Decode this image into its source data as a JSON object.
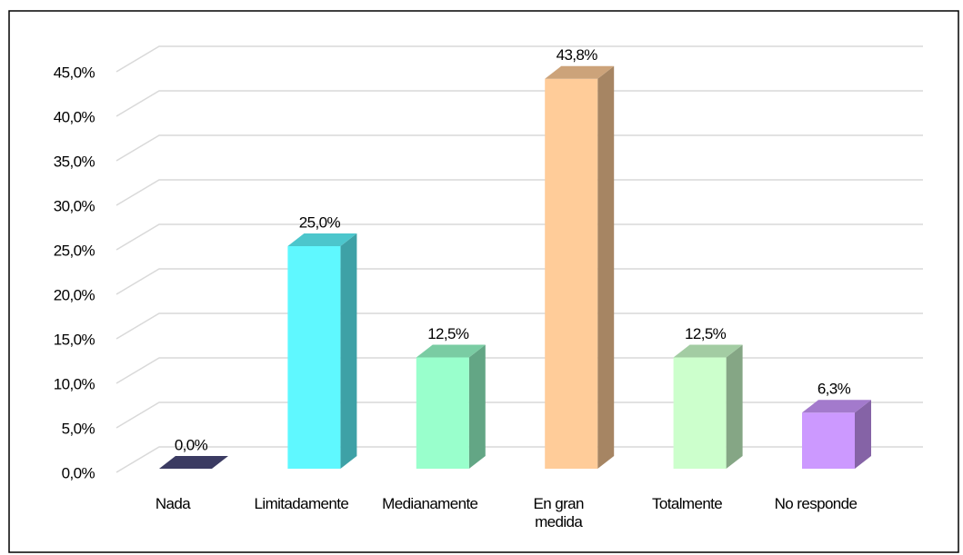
{
  "chart_data": {
    "type": "bar3d",
    "categories": [
      "Nada",
      "Limitadamente",
      "Medianamente",
      "En gran\nmedida",
      "Totalmente",
      "No responde"
    ],
    "values": [
      0,
      25,
      12.5,
      43.8,
      12.5,
      6.3
    ],
    "value_labels": [
      "0,0%",
      "25,0%",
      "12,5%",
      "43,8%",
      "12,5%",
      "6,3%"
    ],
    "colors": [
      "#4a4a7a",
      "#5ff8ff",
      "#99ffcc",
      "#ffcc99",
      "#ccffcc",
      "#cc99ff"
    ],
    "ylim": [
      0,
      45
    ],
    "yticks": [
      {
        "value": 0,
        "label": "0,0%"
      },
      {
        "value": 5,
        "label": "5,0%"
      },
      {
        "value": 10,
        "label": "10,0%"
      },
      {
        "value": 15,
        "label": "15,0%"
      },
      {
        "value": 20,
        "label": "20,0%"
      },
      {
        "value": 25,
        "label": "25,0%"
      },
      {
        "value": 30,
        "label": "30,0%"
      },
      {
        "value": 35,
        "label": "35,0%"
      },
      {
        "value": 40,
        "label": "40,0%"
      },
      {
        "value": 45,
        "label": "45,0%"
      }
    ],
    "grid": true
  }
}
